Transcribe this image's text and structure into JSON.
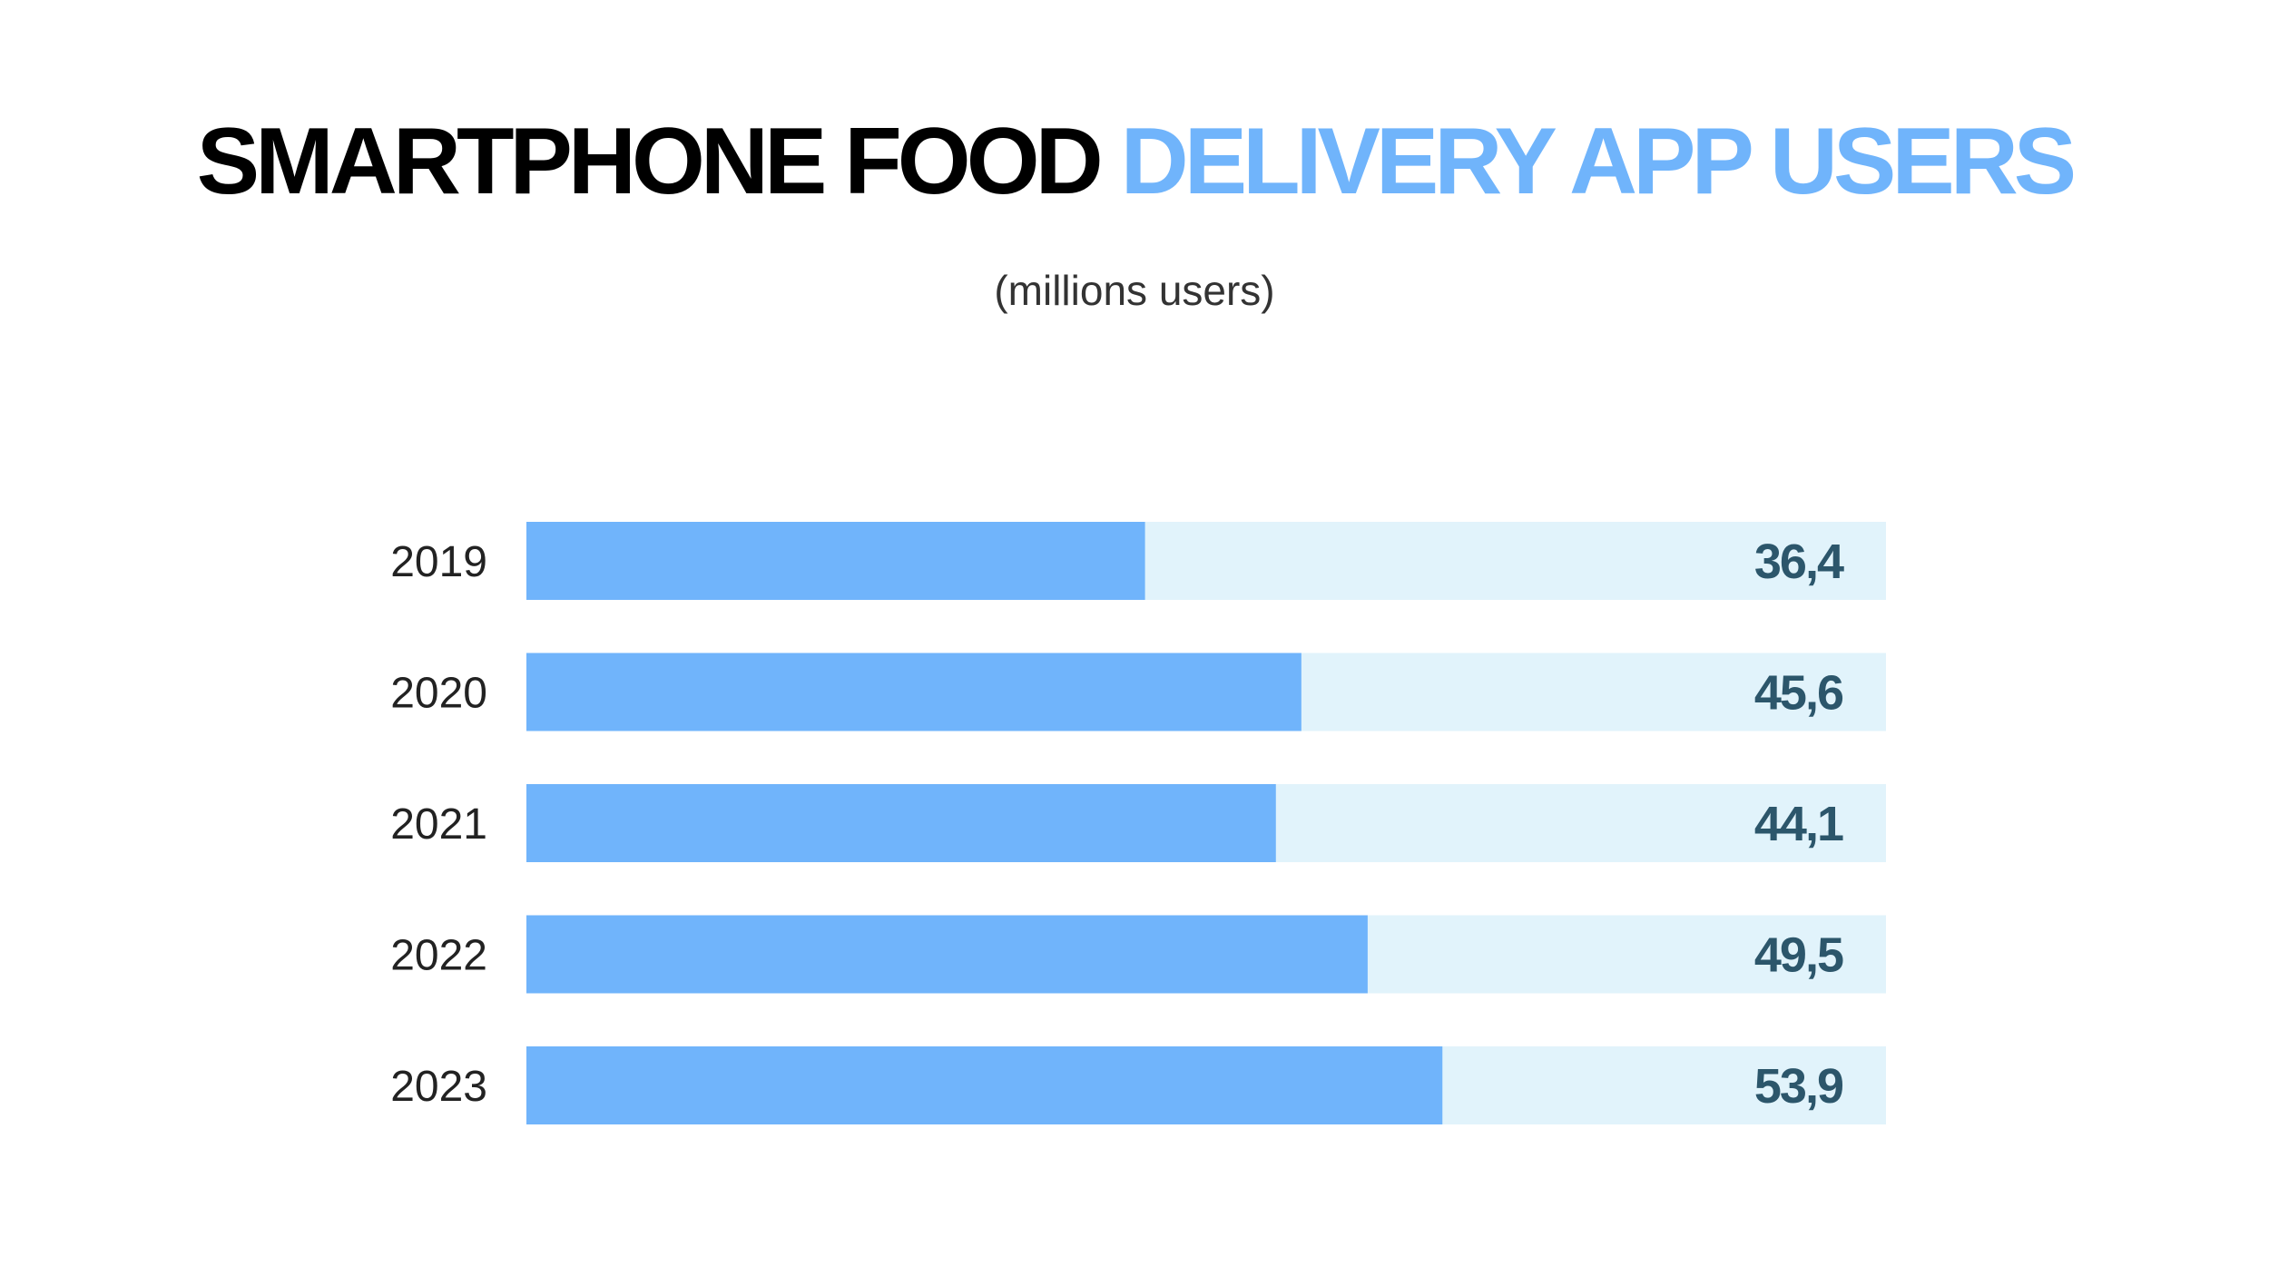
{
  "title": {
    "part1": "SMARTPHONE FOOD",
    "part2": "DELIVERY APP USERS"
  },
  "subtitle": "(millions users)",
  "colors": {
    "bar": "#70b4fb",
    "track": "#e1f3fb",
    "value_text": "#2c566b",
    "title_accent": "#70b4fb"
  },
  "chart_data": {
    "type": "bar",
    "orientation": "horizontal",
    "categories": [
      "2019",
      "2020",
      "2021",
      "2022",
      "2023"
    ],
    "values": [
      36.4,
      45.6,
      44.1,
      49.5,
      53.9
    ],
    "value_labels": [
      "36,4",
      "45,6",
      "44,1",
      "49,5",
      "53,9"
    ],
    "xlim": [
      0,
      80
    ],
    "ylabel": "",
    "xlabel": "",
    "grid": false,
    "legend": "none"
  }
}
